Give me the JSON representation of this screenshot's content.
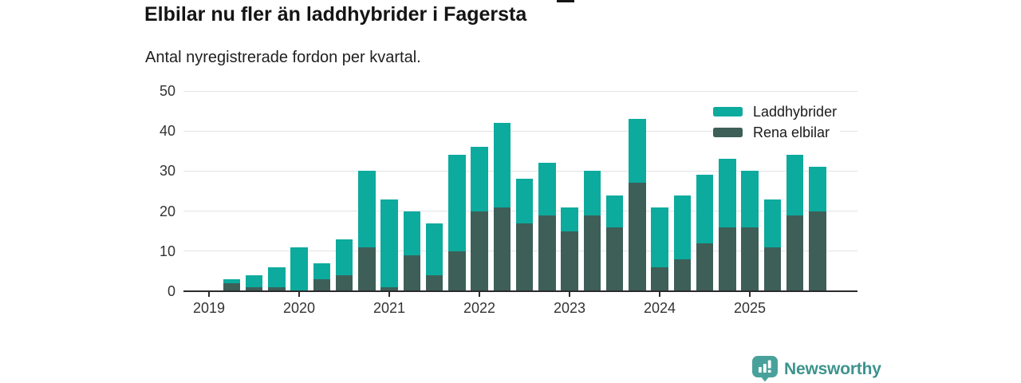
{
  "page": {
    "title": "Elbilar nu fler än laddhybrider i Fagersta",
    "subtitle": "Antal nyregistrerade fordon per kvartal."
  },
  "chart_data": {
    "type": "bar",
    "stacked": true,
    "stack_bottom_to_top": true,
    "title": "Elbilar nu fler än laddhybrider i Fagersta",
    "subtitle": "Antal nyregistrerade fordon per kvartal.",
    "xlabel": "",
    "ylabel": "",
    "ylim": [
      0,
      50
    ],
    "yticks": [
      0,
      10,
      20,
      30,
      40,
      50
    ],
    "grid": "horizontal",
    "legend_position": "top-right",
    "categories": [
      "2019-Q2",
      "2019-Q3",
      "2019-Q4",
      "2020-Q1",
      "2020-Q2",
      "2020-Q3",
      "2020-Q4",
      "2021-Q1",
      "2021-Q2",
      "2021-Q3",
      "2021-Q4",
      "2022-Q1",
      "2022-Q2",
      "2022-Q3",
      "2022-Q4",
      "2023-Q1",
      "2023-Q2",
      "2023-Q3",
      "2023-Q4",
      "2024-Q1",
      "2024-Q2",
      "2024-Q3",
      "2024-Q4",
      "2025-Q1",
      "2025-Q2",
      "2025-Q3",
      "2025-Q4"
    ],
    "series": [
      {
        "name": "Rena elbilar",
        "color": "#3d5f58",
        "values": [
          2,
          1,
          1,
          0,
          3,
          4,
          11,
          1,
          9,
          4,
          10,
          20,
          21,
          17,
          19,
          15,
          19,
          16,
          27,
          6,
          8,
          12,
          16,
          16,
          11,
          19,
          20
        ]
      },
      {
        "name": "Laddhybrider",
        "color": "#0cab9e",
        "values": [
          1,
          3,
          5,
          11,
          4,
          9,
          19,
          22,
          11,
          13,
          24,
          16,
          21,
          11,
          13,
          6,
          11,
          8,
          16,
          15,
          16,
          17,
          17,
          14,
          12,
          15,
          11
        ]
      }
    ],
    "year_ticks": [
      {
        "label": "2019",
        "bar_index": -1
      },
      {
        "label": "2020",
        "bar_index": 3
      },
      {
        "label": "2021",
        "bar_index": 7
      },
      {
        "label": "2022",
        "bar_index": 11
      },
      {
        "label": "2023",
        "bar_index": 15
      },
      {
        "label": "2024",
        "bar_index": 19
      },
      {
        "label": "2025",
        "bar_index": 23
      }
    ]
  },
  "legend": {
    "items": [
      {
        "label": "Laddhybrider",
        "color": "#0cab9e"
      },
      {
        "label": "Rena elbilar",
        "color": "#3d5f58"
      }
    ]
  },
  "footer": {
    "brand": "Newsworthy",
    "logo_icon": "bar-chart-pin-icon",
    "logo_color": "#48a29b",
    "text_color": "#3d938d"
  },
  "colors": {
    "laddhybrider": "#0cab9e",
    "rena_elbilar": "#3d5f58",
    "gridline": "#e3e3e3",
    "axis": "#2b2b2b",
    "text": "#1f1f1f"
  }
}
